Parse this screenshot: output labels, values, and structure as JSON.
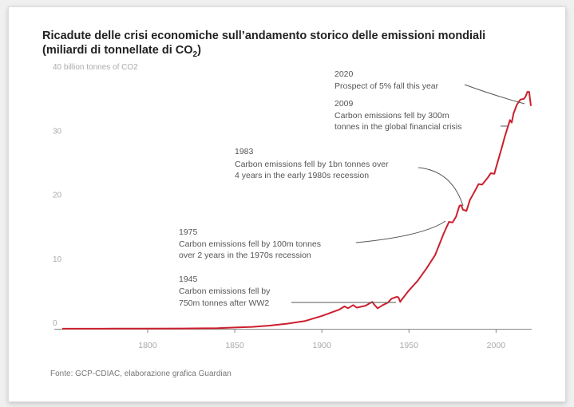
{
  "title_line1": "Ricadute delle crisi economiche sull’andamento storico delle emissioni mondiali",
  "title_line2_prefix": "(miliardi di tonnellate di CO",
  "title_line2_sub": "2",
  "title_line2_suffix": ")",
  "source": "Fonte: GCP-CDIAC, elaborazione grafica Guardian",
  "colors": {
    "line": "#cc1f2d",
    "annotation": "#555555",
    "tick": "#aaaaaa",
    "axis": "#888888"
  },
  "chart_data": {
    "type": "line",
    "title": "Ricadute delle crisi economiche sull’andamento storico delle emissioni mondiali (miliardi di tonnellate di CO2)",
    "ylabel": "40 billion tonnes of CO2",
    "xlim": [
      1751,
      2020
    ],
    "ylim": [
      0,
      40
    ],
    "x_ticks": [
      1800,
      1850,
      1900,
      1950,
      2000
    ],
    "x_tick_labels": [
      "1800",
      "1850",
      "1900",
      "1950",
      "2000"
    ],
    "y_ticks": [
      0,
      10,
      20,
      30,
      40
    ],
    "y_tick_labels": [
      "0",
      "10",
      "20",
      "30",
      "40 billion tonnes of CO2"
    ],
    "grid": false,
    "series": [
      {
        "x": [
          1751,
          1780,
          1800,
          1820,
          1840,
          1850,
          1860,
          1870,
          1880,
          1890,
          1900,
          1905,
          1910,
          1913,
          1915,
          1918,
          1920,
          1925,
          1929,
          1930,
          1932,
          1935,
          1938,
          1940,
          1943,
          1944,
          1945,
          1946,
          1950,
          1955,
          1960,
          1965,
          1970,
          1973,
          1975,
          1977,
          1979,
          1980,
          1981,
          1982,
          1983,
          1985,
          1988,
          1990,
          1992,
          1995,
          1997,
          1999,
          2000,
          2003,
          2005,
          2008,
          2009,
          2010,
          2012,
          2014,
          2016,
          2017,
          2018,
          2019,
          2020
        ],
        "values": [
          0.01,
          0.02,
          0.03,
          0.05,
          0.1,
          0.2,
          0.3,
          0.5,
          0.8,
          1.2,
          2.0,
          2.5,
          3.0,
          3.5,
          3.2,
          3.7,
          3.3,
          3.6,
          4.2,
          3.8,
          3.2,
          3.7,
          4.1,
          4.7,
          5.0,
          4.9,
          4.2,
          4.6,
          6.0,
          7.5,
          9.4,
          11.5,
          14.9,
          16.7,
          16.6,
          17.5,
          19.2,
          19.3,
          18.6,
          18.5,
          18.4,
          20.1,
          21.6,
          22.6,
          22.5,
          23.5,
          24.3,
          24.2,
          25.2,
          28.0,
          30.0,
          32.6,
          32.2,
          33.6,
          35.0,
          35.8,
          35.9,
          36.3,
          37.0,
          37.0,
          34.8
        ]
      }
    ],
    "annotations": [
      {
        "year": "2020",
        "text": "Prospect of 5% fall this year"
      },
      {
        "year": "2009",
        "text_line1": "Carbon emissions fell by 300m",
        "text_line2": "tonnes in the global financial crisis"
      },
      {
        "year": "1983",
        "text_line1": "Carbon emissions fell by 1bn tonnes over",
        "text_line2": "4 years in the early 1980s recession"
      },
      {
        "year": "1975",
        "text_line1": "Carbon emissions fell by 100m tonnes",
        "text_line2": "over 2 years in the 1970s recession"
      },
      {
        "year": "1945",
        "text_line1": "Carbon emissions fell by",
        "text_line2": "750m tonnes after WW2"
      }
    ]
  }
}
